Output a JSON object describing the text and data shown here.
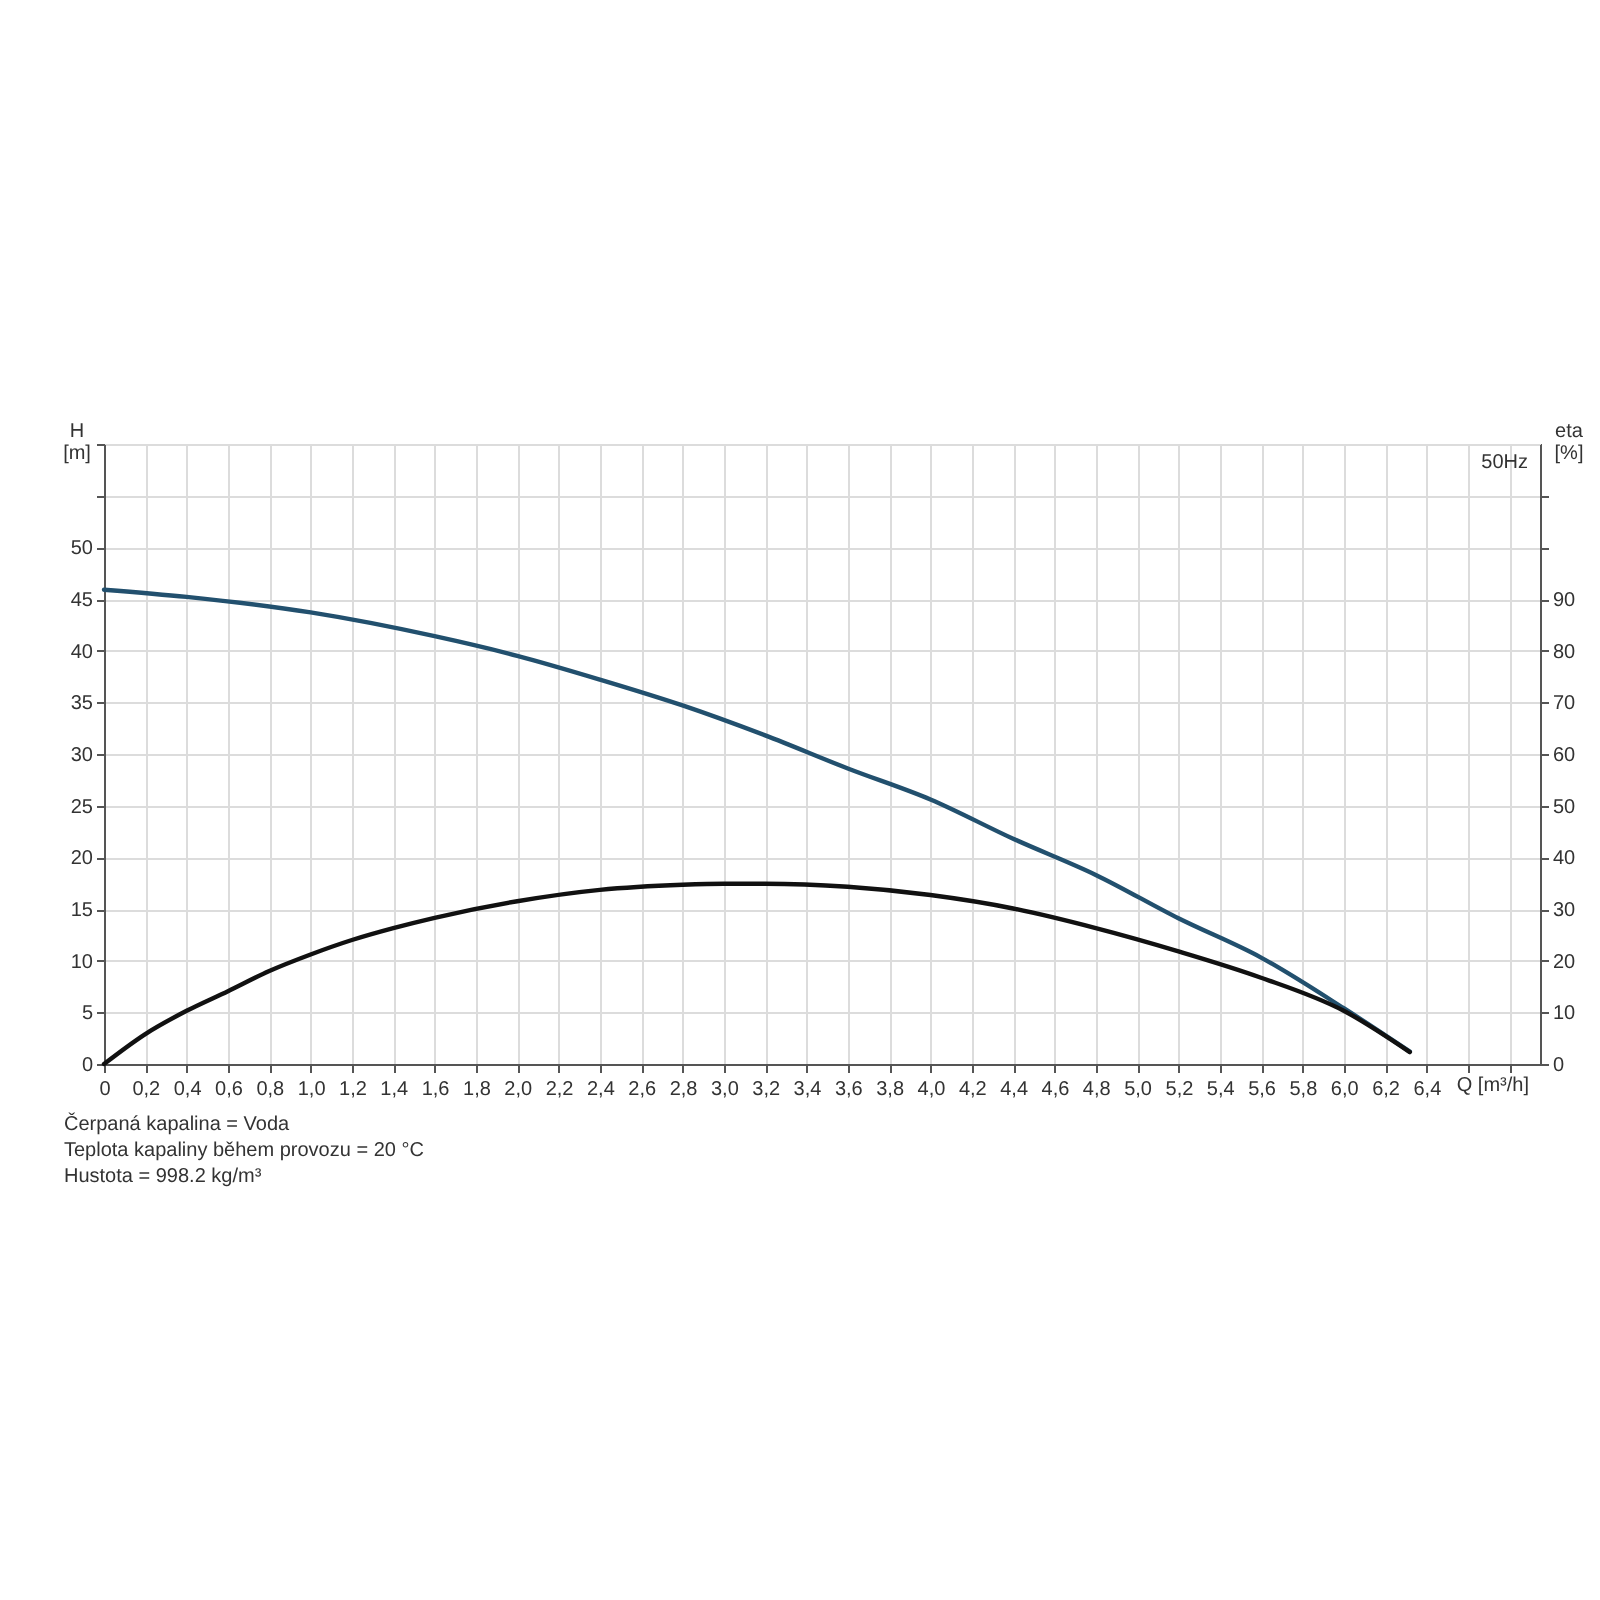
{
  "chart_data": {
    "type": "line",
    "xlabel": "Q [m³/h]",
    "ylabel": "H\n[m]",
    "y2label": "eta\n[%]",
    "annotations": [
      "50Hz",
      "Čerpaná kapalina = Voda",
      "Teplota kapaliny během provozu = 20 °C",
      "Hustota = 998.2 kg/m³"
    ],
    "series": [
      {
        "color": "#22506e",
        "axis": "y",
        "x": [
          0,
          0.4,
          1.0,
          1.6,
          2.0,
          2.4,
          2.8,
          3.2,
          3.6,
          4.0,
          4.4,
          4.8,
          5.2,
          5.6,
          6.0,
          6.32
        ],
        "values": [
          45.9,
          45.2,
          43.7,
          41.4,
          39.5,
          37.2,
          34.7,
          31.8,
          28.6,
          25.6,
          21.8,
          18.3,
          14.1,
          10.3,
          5.4,
          1.2
        ]
      },
      {
        "color": "#111111",
        "axis": "y2",
        "x": [
          0,
          0.2,
          0.4,
          0.6,
          0.8,
          1.0,
          1.2,
          1.4,
          1.6,
          2.0,
          2.4,
          2.8,
          3.0,
          3.2,
          3.6,
          4.0,
          4.4,
          4.8,
          5.2,
          5.6,
          6.0,
          6.32
        ],
        "values": [
          0,
          5.8,
          10.3,
          14.1,
          18,
          21.2,
          24,
          26.3,
          28.3,
          31.5,
          33.7,
          34.7,
          34.9,
          34.9,
          34.3,
          32.7,
          30.1,
          26.3,
          21.8,
          16.7,
          10.3,
          2.3
        ]
      }
    ],
    "xlim": [
      0,
      6.95
    ],
    "ylim": [
      0,
      60
    ],
    "y2lim": [
      0,
      120
    ],
    "xticks": [
      0,
      {
        "value": 0.2,
        "label": "0,2"
      },
      {
        "value": 0.4,
        "label": "0,4"
      },
      {
        "value": 0.6,
        "label": "0,6"
      },
      {
        "value": 0.8,
        "label": "0,8"
      },
      {
        "value": 1,
        "label": "1,0"
      },
      {
        "value": 1.2,
        "label": "1,2"
      },
      {
        "value": 1.4,
        "label": "1,4"
      },
      {
        "value": 1.6,
        "label": "1,6"
      },
      {
        "value": 1.8,
        "label": "1,8"
      },
      {
        "value": 2,
        "label": "2,0"
      },
      {
        "value": 2.2,
        "label": "2,2"
      },
      {
        "value": 2.4,
        "label": "2,4"
      },
      {
        "value": 2.6,
        "label": "2,6"
      },
      {
        "value": 2.8,
        "label": "2,8"
      },
      {
        "value": 3,
        "label": "3,0"
      },
      {
        "value": 3.2,
        "label": "3,2"
      },
      {
        "value": 3.4,
        "label": "3,4"
      },
      {
        "value": 3.6,
        "label": "3,6"
      },
      {
        "value": 3.8,
        "label": "3,8"
      },
      {
        "value": 4,
        "label": "4,0"
      },
      {
        "value": 4.2,
        "label": "4,2"
      },
      {
        "value": 4.4,
        "label": "4,4"
      },
      {
        "value": 4.6,
        "label": "4,6"
      },
      {
        "value": 4.8,
        "label": "4,8"
      },
      {
        "value": 5,
        "label": "5,0"
      },
      {
        "value": 5.2,
        "label": "5,2"
      },
      {
        "value": 5.4,
        "label": "5,4"
      },
      {
        "value": 5.6,
        "label": "5,6"
      },
      {
        "value": 5.8,
        "label": "5,8"
      },
      {
        "value": 6,
        "label": "6,0"
      },
      {
        "value": 6.2,
        "label": "6,2"
      },
      {
        "value": 6.4,
        "label": "6,4"
      },
      {
        "value": 6.6,
        "label": null
      },
      {
        "value": 6.8,
        "label": null
      }
    ],
    "yticks": [
      0,
      5,
      10,
      15,
      20,
      25,
      30,
      35,
      40,
      45,
      50,
      {
        "value": 55,
        "label": null
      },
      {
        "value": 60,
        "label": null
      }
    ],
    "y2ticks": [
      0,
      10,
      20,
      30,
      40,
      50,
      60,
      70,
      80,
      90,
      {
        "value": 100,
        "label": null
      },
      {
        "value": 110,
        "label": null
      }
    ],
    "grid": true,
    "marker": "none",
    "line_style": "solid"
  }
}
